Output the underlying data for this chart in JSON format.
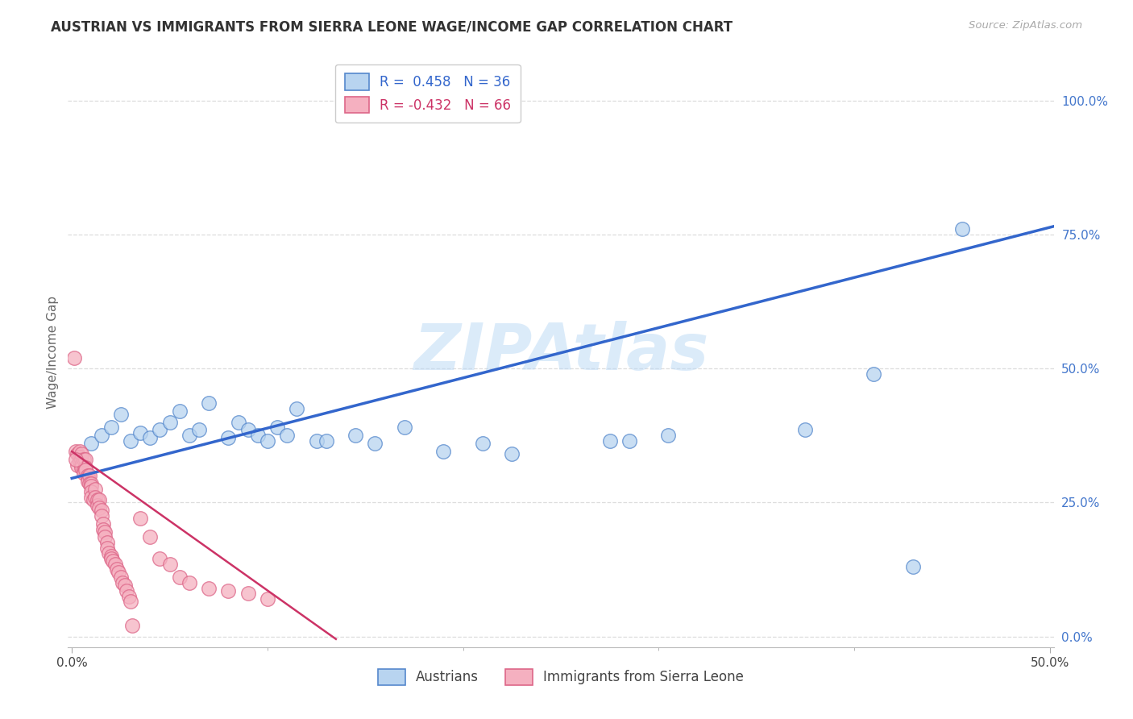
{
  "title": "AUSTRIAN VS IMMIGRANTS FROM SIERRA LEONE WAGE/INCOME GAP CORRELATION CHART",
  "source": "Source: ZipAtlas.com",
  "ylabel": "Wage/Income Gap",
  "xlim": [
    -0.002,
    0.502
  ],
  "ylim": [
    -0.02,
    1.08
  ],
  "xticks": [
    0.0,
    0.5
  ],
  "xtick_labels": [
    "0.0%",
    "50.0%"
  ],
  "xtick_minor": [
    0.1,
    0.2,
    0.3,
    0.4
  ],
  "yticks_right": [
    0.0,
    0.25,
    0.5,
    0.75,
    1.0
  ],
  "ytick_labels_right": [
    "0.0%",
    "25.0%",
    "50.0%",
    "75.0%",
    "100.0%"
  ],
  "blue_R": 0.458,
  "blue_N": 36,
  "pink_R": -0.432,
  "pink_N": 66,
  "blue_color": "#b8d4f0",
  "pink_color": "#f5b0c0",
  "blue_edge_color": "#5588cc",
  "pink_edge_color": "#dd6688",
  "blue_line_color": "#3366cc",
  "pink_line_color": "#cc3366",
  "right_tick_color": "#4477cc",
  "watermark": "ZIPAtlas",
  "legend_label_blue": "Austrians",
  "legend_label_pink": "Immigrants from Sierra Leone",
  "blue_scatter_x": [
    0.01,
    0.015,
    0.02,
    0.025,
    0.03,
    0.035,
    0.04,
    0.045,
    0.05,
    0.055,
    0.06,
    0.065,
    0.07,
    0.08,
    0.085,
    0.09,
    0.095,
    0.1,
    0.105,
    0.11,
    0.115,
    0.125,
    0.13,
    0.145,
    0.155,
    0.17,
    0.19,
    0.21,
    0.225,
    0.275,
    0.285,
    0.305,
    0.375,
    0.41,
    0.43,
    0.455
  ],
  "blue_scatter_y": [
    0.36,
    0.375,
    0.39,
    0.415,
    0.365,
    0.38,
    0.37,
    0.385,
    0.4,
    0.42,
    0.375,
    0.385,
    0.435,
    0.37,
    0.4,
    0.385,
    0.375,
    0.365,
    0.39,
    0.375,
    0.425,
    0.365,
    0.365,
    0.375,
    0.36,
    0.39,
    0.345,
    0.36,
    0.34,
    0.365,
    0.365,
    0.375,
    0.385,
    0.49,
    0.13,
    0.76
  ],
  "pink_scatter_x": [
    0.002,
    0.003,
    0.003,
    0.004,
    0.004,
    0.004,
    0.005,
    0.005,
    0.005,
    0.005,
    0.006,
    0.006,
    0.006,
    0.007,
    0.007,
    0.007,
    0.008,
    0.008,
    0.008,
    0.009,
    0.009,
    0.01,
    0.01,
    0.01,
    0.01,
    0.011,
    0.012,
    0.012,
    0.013,
    0.013,
    0.014,
    0.014,
    0.015,
    0.015,
    0.016,
    0.016,
    0.017,
    0.017,
    0.018,
    0.018,
    0.019,
    0.02,
    0.02,
    0.021,
    0.022,
    0.023,
    0.024,
    0.025,
    0.026,
    0.027,
    0.028,
    0.029,
    0.03,
    0.031,
    0.035,
    0.04,
    0.045,
    0.05,
    0.055,
    0.06,
    0.07,
    0.08,
    0.09,
    0.1,
    0.001,
    0.002
  ],
  "pink_scatter_y": [
    0.345,
    0.34,
    0.32,
    0.345,
    0.335,
    0.325,
    0.33,
    0.34,
    0.32,
    0.315,
    0.33,
    0.31,
    0.305,
    0.33,
    0.315,
    0.31,
    0.3,
    0.295,
    0.29,
    0.3,
    0.285,
    0.285,
    0.28,
    0.27,
    0.26,
    0.255,
    0.275,
    0.26,
    0.255,
    0.245,
    0.255,
    0.24,
    0.235,
    0.225,
    0.21,
    0.2,
    0.195,
    0.185,
    0.175,
    0.165,
    0.155,
    0.15,
    0.145,
    0.14,
    0.135,
    0.125,
    0.12,
    0.11,
    0.1,
    0.095,
    0.085,
    0.075,
    0.065,
    0.02,
    0.22,
    0.185,
    0.145,
    0.135,
    0.11,
    0.1,
    0.09,
    0.085,
    0.08,
    0.07,
    0.52,
    0.33
  ],
  "blue_trend_x": [
    0.0,
    0.502
  ],
  "blue_trend_y": [
    0.295,
    0.765
  ],
  "pink_trend_x": [
    0.0,
    0.135
  ],
  "pink_trend_y": [
    0.345,
    -0.005
  ],
  "grid_color": "#dddddd"
}
